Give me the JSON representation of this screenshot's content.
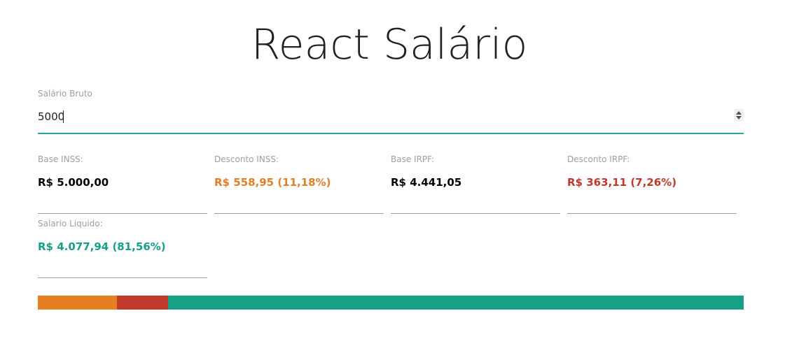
{
  "app": {
    "title": "React Salário"
  },
  "salary_input": {
    "label": "Salário Bruto",
    "value": "5000"
  },
  "results": [
    {
      "label": "Base INSS:",
      "value": "R$ 5.000,00",
      "color": "#000000"
    },
    {
      "label": "Desconto INSS:",
      "value": "R$ 558,95 (11,18%)",
      "color": "#e67e22"
    },
    {
      "label": "Base IRPF:",
      "value": "R$ 4.441,05",
      "color": "#000000"
    },
    {
      "label": "Desconto IRPF:",
      "value": "R$ 363,11 (7,26%)",
      "color": "#c0392b"
    },
    {
      "label": "Salario Liquido:",
      "value": "R$ 4.077,94 (81,56%)",
      "color": "#16a085"
    }
  ],
  "distribution_bar": {
    "segments": [
      {
        "share_percent": 11.18,
        "color": "#e67e22"
      },
      {
        "share_percent": 7.26,
        "color": "#c0392b"
      },
      {
        "share_percent": 81.56,
        "color": "#16a085"
      }
    ]
  }
}
